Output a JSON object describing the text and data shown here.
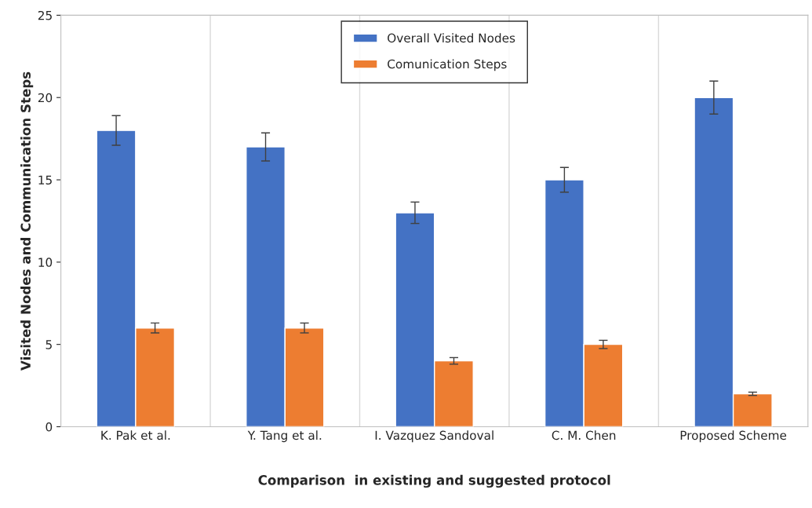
{
  "chart_data": {
    "type": "bar",
    "xlabel": "Comparison  in existing and suggested protocol",
    "ylabel": "Visited Nodes and Communication Steps",
    "categories": [
      "K. Pak et al.",
      "Y. Tang et al.",
      "I. Vazquez Sandoval",
      "C. M. Chen",
      "Proposed Scheme"
    ],
    "series": [
      {
        "name": "Overall Visited Nodes",
        "color": "#4472c4",
        "values": [
          18,
          17,
          13,
          15,
          20
        ],
        "errors": [
          0.9,
          0.85,
          0.65,
          0.75,
          1
        ]
      },
      {
        "name": "Comunication Steps",
        "color": "#ed7d31",
        "values": [
          6,
          6,
          4,
          5,
          2
        ],
        "errors": [
          0.3,
          0.3,
          0.2,
          0.25,
          0.1
        ]
      }
    ],
    "ylim": [
      0,
      25
    ],
    "yticks": [
      0,
      5,
      10,
      15,
      20,
      25
    ],
    "grid": "x",
    "legend": "top"
  }
}
